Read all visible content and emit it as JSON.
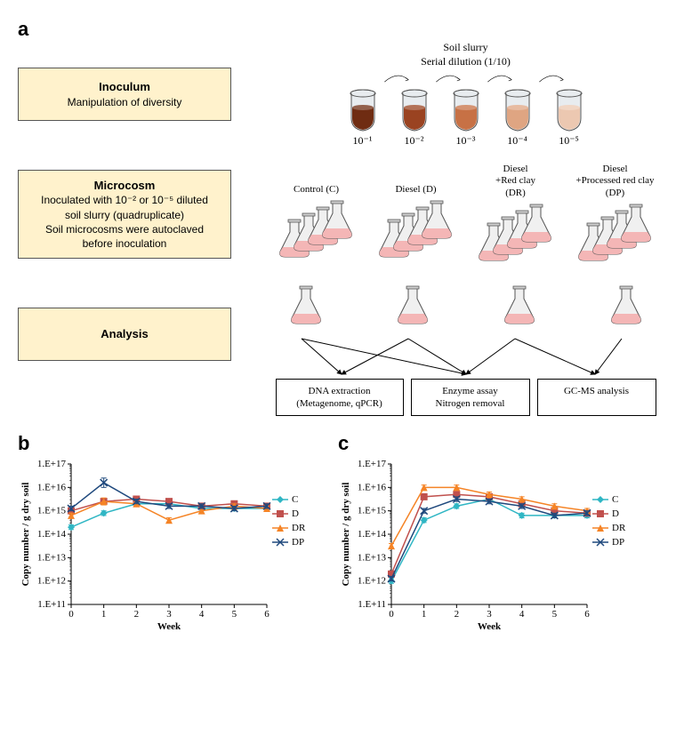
{
  "panel_labels": {
    "a": "a",
    "b": "b",
    "c": "c"
  },
  "inoculum": {
    "box_title": "Inoculum",
    "box_sub": "Manipulation of diversity",
    "header_top": "Soil slurry",
    "header_bottom": "Serial dilution (1/10)",
    "tube_fill_colors": [
      "#6f2c12",
      "#9a4321",
      "#c77145",
      "#dfa582",
      "#ecc8b1"
    ],
    "tube_labels": [
      "10⁻¹",
      "10⁻²",
      "10⁻³",
      "10⁻⁴",
      "10⁻⁵"
    ]
  },
  "microcosm": {
    "box_title": "Microcosm",
    "box_lines": [
      "Inoculated with 10⁻² or 10⁻⁵ diluted",
      "soil slurry (quadruplicate)",
      "Soil microcosms were autoclaved",
      "before inoculation"
    ],
    "groups": [
      {
        "label": "Control (C)"
      },
      {
        "label": "Diesel (D)"
      },
      {
        "label": "Diesel\n+Red clay\n(DR)"
      },
      {
        "label": "Diesel\n+Processed red clay\n(DP)"
      }
    ]
  },
  "analysis": {
    "box_title": "Analysis",
    "boxes": [
      "DNA extraction\n(Metagenome, qPCR)",
      "Enzyme assay\nNitrogen removal",
      "GC-MS analysis"
    ]
  },
  "chart_common": {
    "series": [
      {
        "key": "C",
        "label": "C",
        "color": "#2fb6c4",
        "marker": "diamond"
      },
      {
        "key": "D",
        "label": "D",
        "color": "#c0504d",
        "marker": "square"
      },
      {
        "key": "DR",
        "label": "DR",
        "color": "#f58426",
        "marker": "triangle"
      },
      {
        "key": "DP",
        "label": "DP",
        "color": "#1f497d",
        "marker": "cross"
      }
    ],
    "x_ticks": [
      0,
      1,
      2,
      3,
      4,
      5,
      6
    ],
    "x_label": "Week",
    "y_label": "Copy number / g dry soil",
    "y_log_min": 11,
    "y_log_max": 17,
    "y_tick_labels": [
      "1.E+11",
      "1.E+12",
      "1.E+13",
      "1.E+14",
      "1.E+15",
      "1.E+16",
      "1.E+17"
    ],
    "plot_bg": "#ffffff",
    "axis_color": "#000000",
    "line_width": 1.5,
    "marker_size": 4
  },
  "chart_b": {
    "data": {
      "C": {
        "y": [
          14.3,
          14.9,
          15.3,
          15.3,
          15.1,
          15.1,
          15.1
        ],
        "err": [
          0.1,
          0.1,
          0.1,
          0.1,
          0.1,
          0.1,
          0.1
        ]
      },
      "D": {
        "y": [
          15.0,
          15.4,
          15.5,
          15.4,
          15.2,
          15.3,
          15.2
        ],
        "err": [
          0.1,
          0.1,
          0.1,
          0.1,
          0.1,
          0.1,
          0.1
        ]
      },
      "DR": {
        "y": [
          14.8,
          15.4,
          15.3,
          14.6,
          15.0,
          15.2,
          15.1
        ],
        "err": [
          0.1,
          0.15,
          0.1,
          0.1,
          0.1,
          0.1,
          0.1
        ]
      },
      "DP": {
        "y": [
          15.1,
          16.2,
          15.4,
          15.2,
          15.2,
          15.1,
          15.2
        ],
        "err": [
          0.1,
          0.2,
          0.1,
          0.1,
          0.1,
          0.1,
          0.1
        ]
      }
    }
  },
  "chart_c": {
    "data": {
      "C": {
        "y": [
          12.0,
          14.6,
          15.2,
          15.5,
          14.8,
          14.8,
          14.8
        ],
        "err": [
          0.1,
          0.1,
          0.1,
          0.1,
          0.1,
          0.1,
          0.1
        ]
      },
      "D": {
        "y": [
          12.3,
          15.6,
          15.7,
          15.6,
          15.3,
          15.0,
          14.9
        ],
        "err": [
          0.1,
          0.1,
          0.1,
          0.1,
          0.1,
          0.1,
          0.1
        ]
      },
      "DR": {
        "y": [
          13.5,
          16.0,
          16.0,
          15.7,
          15.5,
          15.2,
          15.0
        ],
        "err": [
          0.1,
          0.1,
          0.1,
          0.1,
          0.1,
          0.1,
          0.1
        ]
      },
      "DP": {
        "y": [
          12.1,
          15.0,
          15.5,
          15.4,
          15.2,
          14.8,
          14.9
        ],
        "err": [
          0.1,
          0.1,
          0.1,
          0.1,
          0.1,
          0.1,
          0.1
        ]
      }
    }
  }
}
